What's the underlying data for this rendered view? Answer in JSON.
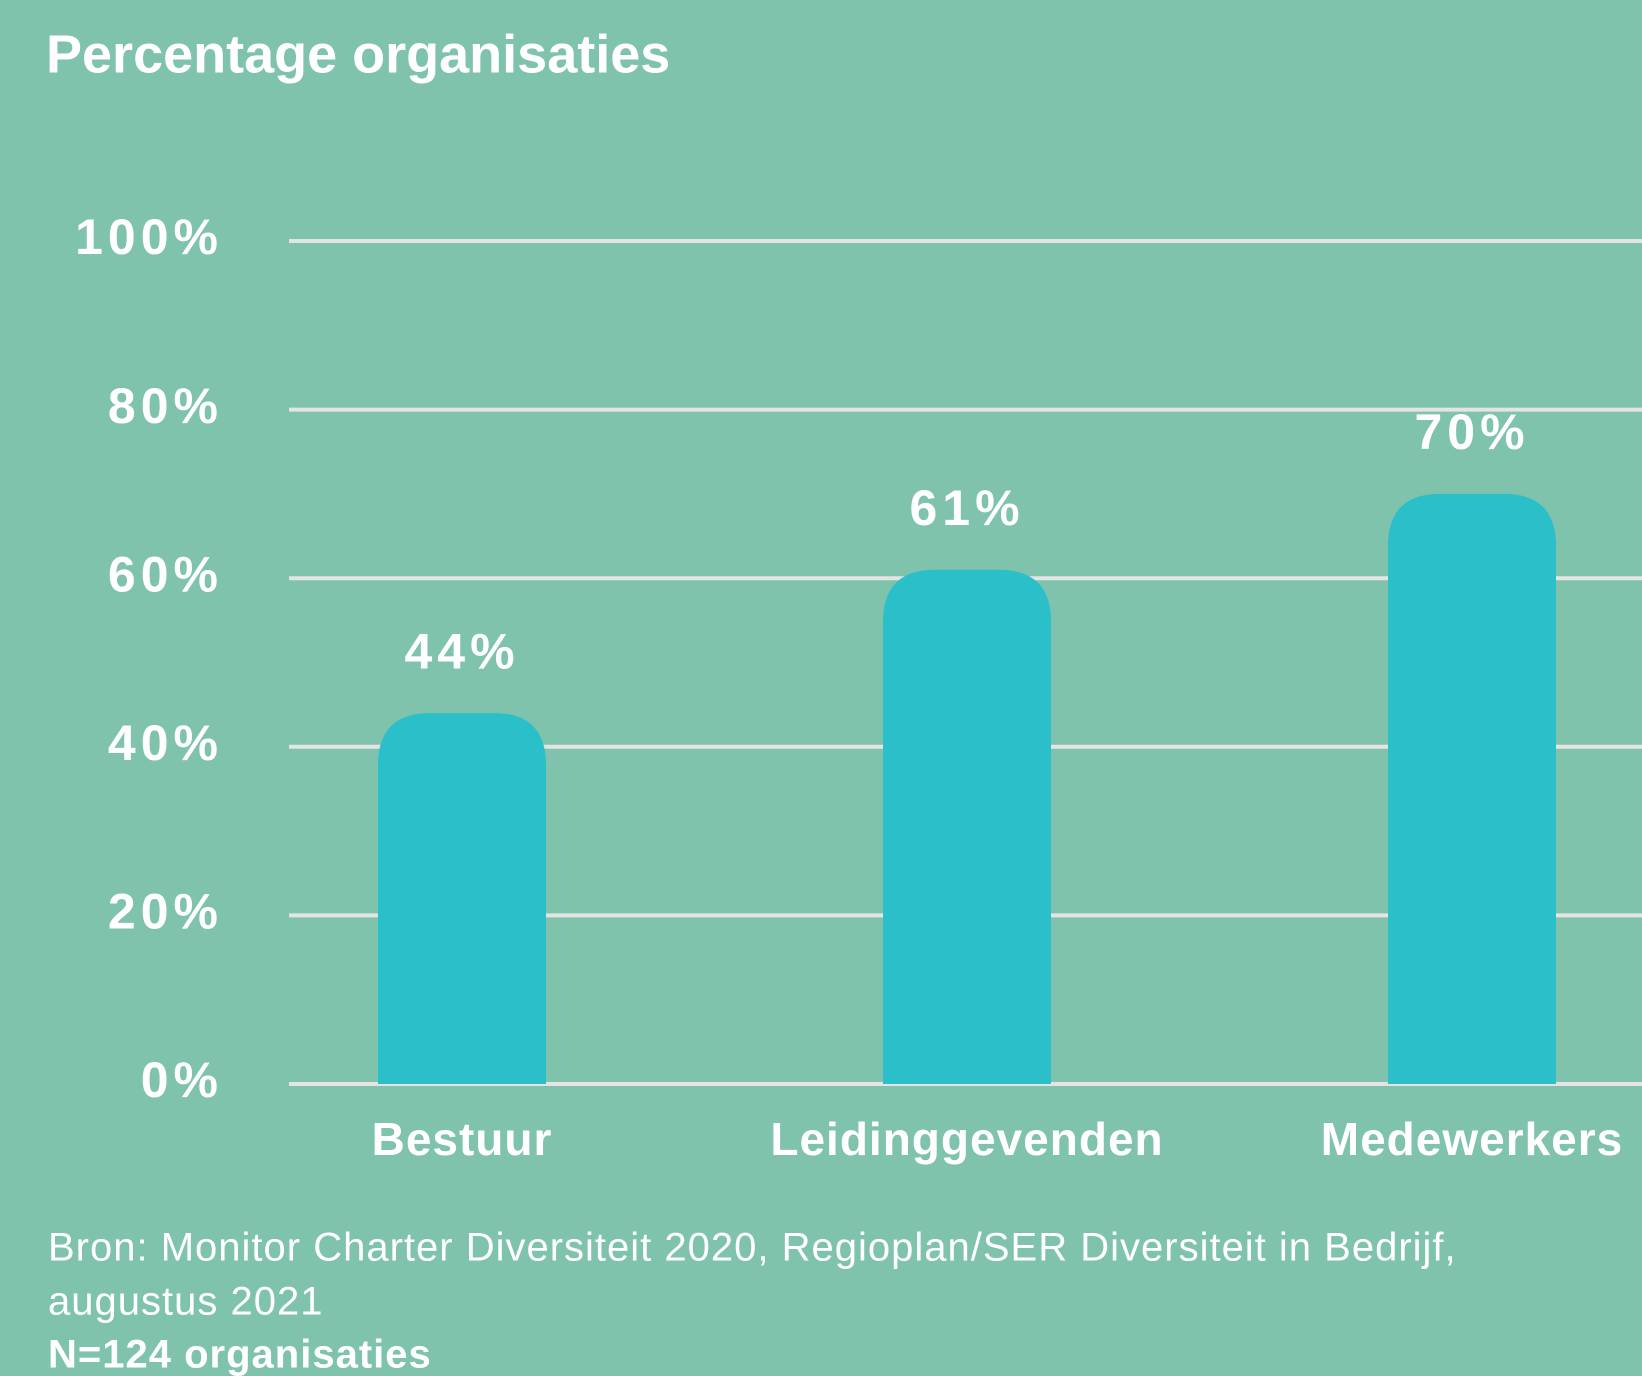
{
  "chart_data": {
    "type": "bar",
    "title": "Percentage organisaties",
    "categories": [
      "Bestuur",
      "Leidinggevenden",
      "Medewerkers"
    ],
    "values": [
      44,
      61,
      70
    ],
    "value_labels": [
      "44%",
      "61%",
      "70%"
    ],
    "color": "#2bbfca",
    "ylim": [
      0,
      100
    ],
    "yticks": [
      {
        "value": 0,
        "label": "0%"
      },
      {
        "value": 20,
        "label": "20%"
      },
      {
        "value": 40,
        "label": "40%"
      },
      {
        "value": 60,
        "label": "60%"
      },
      {
        "value": 80,
        "label": "80%"
      },
      {
        "value": 100,
        "label": "100%"
      }
    ],
    "grid": true,
    "source": [
      "Bron: Monitor Charter Diversiteit 2020, Regioplan/SER Diversiteit in Bedrijf,",
      "augustus 2021"
    ],
    "note": "N=124 organisaties"
  }
}
